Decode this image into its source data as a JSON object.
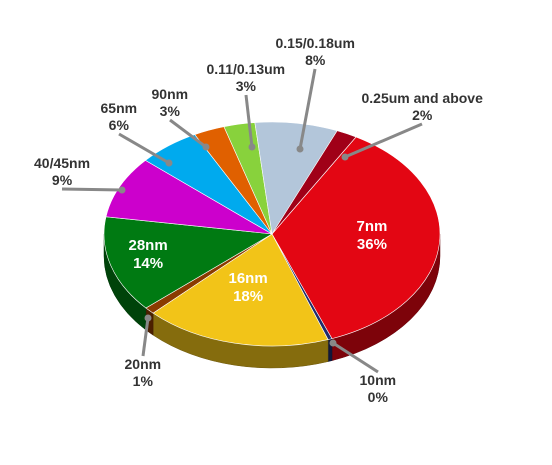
{
  "chart_data": {
    "type": "pie",
    "title": "",
    "style": "3d",
    "legend": "none",
    "slices": [
      {
        "label": "7nm",
        "value": 36,
        "pct": "36%",
        "color": "#e30613"
      },
      {
        "label": "10nm",
        "value": 0.4,
        "pct": "0%",
        "color": "#1f2a6b"
      },
      {
        "label": "16nm",
        "value": 18,
        "pct": "18%",
        "color": "#f2c418"
      },
      {
        "label": "20nm",
        "value": 1,
        "pct": "1%",
        "color": "#8a3b00"
      },
      {
        "label": "28nm",
        "value": 14,
        "pct": "14%",
        "color": "#007a12"
      },
      {
        "label": "40/45nm",
        "value": 9,
        "pct": "9%",
        "color": "#cc00cc"
      },
      {
        "label": "65nm",
        "value": 6,
        "pct": "6%",
        "color": "#00aaee"
      },
      {
        "label": "90nm",
        "value": 3,
        "pct": "3%",
        "color": "#e06000"
      },
      {
        "label": "0.11/0.13um",
        "value": 3,
        "pct": "3%",
        "color": "#88d23c"
      },
      {
        "label": "0.15/0.18um",
        "value": 8,
        "pct": "8%",
        "color": "#b3c6da"
      },
      {
        "label": "0.25um and above",
        "value": 2,
        "pct": "2%",
        "color": "#a00018"
      }
    ]
  }
}
